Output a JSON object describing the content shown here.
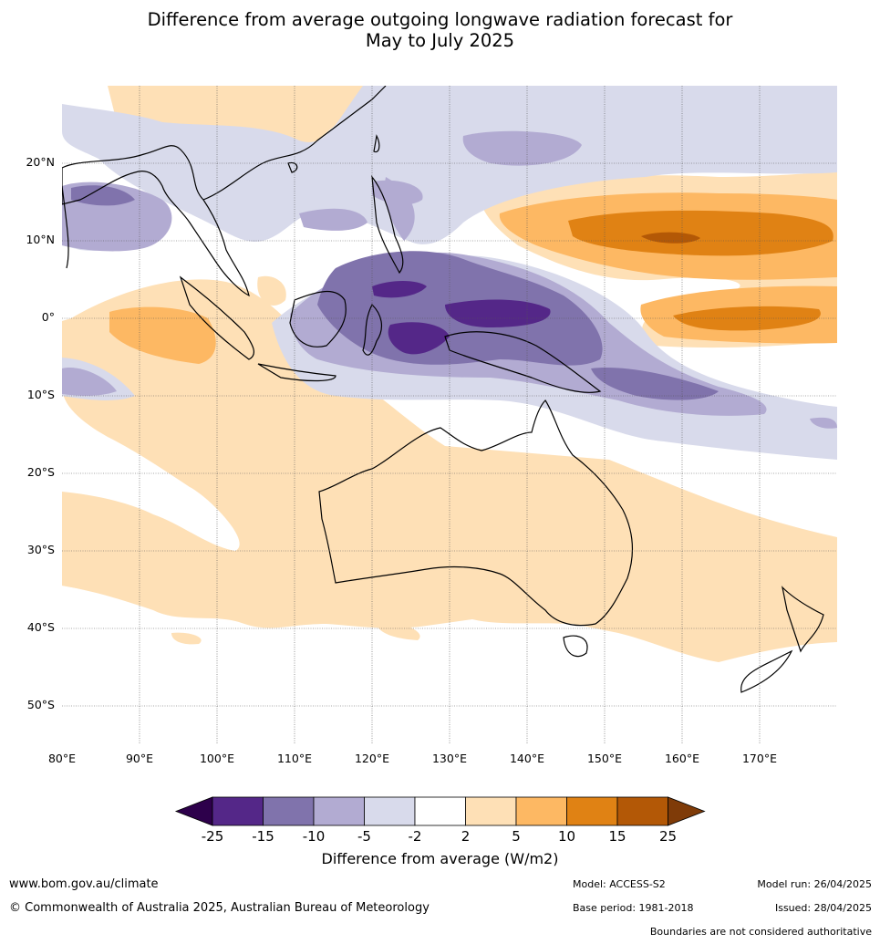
{
  "title": {
    "line1": "Difference from average outgoing longwave radiation forecast for",
    "line2": "May to July 2025"
  },
  "map": {
    "latitude_labels": [
      "20°N",
      "10°N",
      "0°",
      "10°S",
      "20°S",
      "30°S",
      "40°S",
      "50°S"
    ],
    "longitude_labels": [
      "80°E",
      "90°E",
      "100°E",
      "110°E",
      "120°E",
      "130°E",
      "140°E",
      "150°E",
      "160°E",
      "170°E"
    ],
    "extent": {
      "lon_min": 80,
      "lon_max": 180,
      "lat_min": -55,
      "lat_max": 30
    }
  },
  "colorbar": {
    "tick_labels": [
      "-25",
      "-15",
      "-10",
      "-5",
      "-2",
      "2",
      "5",
      "10",
      "15",
      "25"
    ],
    "colors": {
      "below_min": "#2d004b",
      "bins": [
        "#542788",
        "#8073ac",
        "#b2abd2",
        "#d8daeb",
        "#ffffff",
        "#fee0b6",
        "#fdb863",
        "#e08214",
        "#b35806"
      ],
      "above_max": "#7f3b08"
    },
    "label": "Difference from average (W/m2)"
  },
  "footer": {
    "website": "www.bom.gov.au/climate",
    "copyright": "© Commonwealth of Australia 2025, Australian Bureau of Meteorology",
    "model": "Model: ACCESS-S2",
    "base_period": "Base period: 1981-2018",
    "model_run": "Model run: 26/04/2025",
    "issued": "Issued: 28/04/2025",
    "disclaimer": "Boundaries are not considered authoritative"
  }
}
